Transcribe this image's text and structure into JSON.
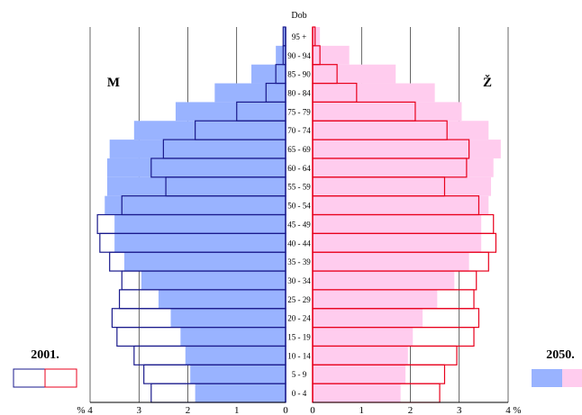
{
  "chart_data": {
    "type": "bar",
    "subtype": "population-pyramid",
    "title": "",
    "center_axis_label": "Dob",
    "left_label": "M",
    "right_label": "Ž",
    "x_unit_left": "%",
    "x_unit_right": "%",
    "x_ticks_left": [
      "4",
      "3",
      "2",
      "1",
      "0"
    ],
    "x_ticks_right": [
      "0",
      "1",
      "2",
      "3",
      "4"
    ],
    "xlim": [
      0,
      4
    ],
    "categories": [
      "0 - 4",
      "5 - 9",
      "10 - 14",
      "15 - 19",
      "20 - 24",
      "25 - 29",
      "30 - 34",
      "35 - 39",
      "40 - 44",
      "45 - 49",
      "50 - 54",
      "55 - 59",
      "60 - 64",
      "65 - 69",
      "70 - 74",
      "75 - 79",
      "80 - 84",
      "85 - 90",
      "90 - 94",
      "95 +"
    ],
    "series": [
      {
        "name": "2050.",
        "sex": "M",
        "style": "filled",
        "color": "#99b3ff",
        "values": [
          1.85,
          1.95,
          2.05,
          2.15,
          2.35,
          2.6,
          2.95,
          3.3,
          3.5,
          3.5,
          3.7,
          3.65,
          3.65,
          3.6,
          3.1,
          2.25,
          1.45,
          0.7,
          0.2,
          0.05
        ]
      },
      {
        "name": "2050.",
        "sex": "Ž",
        "style": "filled",
        "color": "#ffccee",
        "values": [
          1.8,
          1.9,
          1.95,
          2.05,
          2.25,
          2.55,
          2.9,
          3.2,
          3.45,
          3.45,
          3.6,
          3.65,
          3.7,
          3.85,
          3.6,
          3.05,
          2.5,
          1.7,
          0.75,
          0.15
        ]
      },
      {
        "name": "2001.",
        "sex": "M",
        "style": "outline",
        "color": "#1a1a8c",
        "values": [
          2.75,
          2.9,
          3.1,
          3.45,
          3.55,
          3.4,
          3.35,
          3.6,
          3.8,
          3.85,
          3.35,
          2.45,
          2.75,
          2.5,
          1.85,
          1.0,
          0.4,
          0.2,
          0.05,
          0.05
        ]
      },
      {
        "name": "2001.",
        "sex": "Ž",
        "style": "outline",
        "color": "#e8001c",
        "values": [
          2.6,
          2.7,
          2.95,
          3.3,
          3.4,
          3.3,
          3.35,
          3.6,
          3.75,
          3.7,
          3.4,
          2.7,
          3.15,
          3.2,
          2.75,
          2.1,
          0.9,
          0.5,
          0.15,
          0.05
        ]
      }
    ],
    "legend": {
      "left": {
        "label": "2001.",
        "placement": "bottom-left",
        "colors": [
          "#1a1a8c",
          "#e8001c"
        ]
      },
      "right": {
        "label": "2050.",
        "placement": "bottom-right",
        "colors": [
          "#99b3ff",
          "#ffccee"
        ]
      }
    },
    "grid": true
  }
}
